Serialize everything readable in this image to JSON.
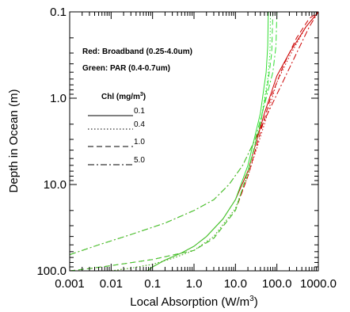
{
  "chart_data": {
    "type": "line",
    "xlabel": "Local Absorption (W/m",
    "xlabel_sup": "3",
    "xlabel_close": ")",
    "ylabel": "Depth in Ocean (m)",
    "x_scale": "log",
    "y_scale": "log",
    "y_inverted": true,
    "xlim": [
      0.001,
      1000
    ],
    "ylim": [
      0.1,
      100
    ],
    "x_ticks": [
      {
        "value": 0.001,
        "label": "0.001"
      },
      {
        "value": 0.01,
        "label": "0.01"
      },
      {
        "value": 0.1,
        "label": "0.1"
      },
      {
        "value": 1,
        "label": "1.0"
      },
      {
        "value": 10,
        "label": "10.0"
      },
      {
        "value": 100,
        "label": "100.0"
      },
      {
        "value": 1000,
        "label": "1000.0"
      }
    ],
    "y_ticks": [
      {
        "value": 0.1,
        "label": "0.1"
      },
      {
        "value": 1,
        "label": "1.0"
      },
      {
        "value": 10,
        "label": "10.0"
      },
      {
        "value": 100,
        "label": "100.0"
      }
    ],
    "annotations": [
      "Red: Broadband (0.25-4.0um)",
      "Green: PAR (0.4-0.7um)"
    ],
    "legend_title": "Chl (mg/m",
    "legend_title_sup": "3",
    "legend_title_close": ")",
    "legend": [
      {
        "label": "0.1",
        "dash": "solid"
      },
      {
        "label": "0.4",
        "dash": "dotted"
      },
      {
        "label": "1.0",
        "dash": "dashed"
      },
      {
        "label": "5.0",
        "dash": "dashdot"
      }
    ],
    "colors": {
      "broadband": "#cc0000",
      "par": "#33dd33"
    },
    "series": [
      {
        "group": "broadband",
        "chl": "0.1",
        "dash": "solid",
        "points": [
          [
            0.075,
            100
          ],
          [
            0.1,
            90
          ],
          [
            0.2,
            75
          ],
          [
            0.5,
            62
          ],
          [
            1,
            52
          ],
          [
            2,
            40
          ],
          [
            5,
            25
          ],
          [
            10,
            15
          ],
          [
            20,
            7
          ],
          [
            50,
            1.5
          ],
          [
            100,
            0.55
          ],
          [
            200,
            0.3
          ],
          [
            500,
            0.15
          ],
          [
            1000,
            0.1
          ]
        ]
      },
      {
        "group": "par",
        "chl": "0.1",
        "dash": "solid",
        "points": [
          [
            0.075,
            100
          ],
          [
            0.1,
            90
          ],
          [
            0.2,
            75
          ],
          [
            0.5,
            62
          ],
          [
            1,
            52
          ],
          [
            2,
            40
          ],
          [
            5,
            25
          ],
          [
            10,
            15
          ],
          [
            20,
            6
          ],
          [
            40,
            1.5
          ],
          [
            55,
            0.5
          ],
          [
            60,
            0.25
          ],
          [
            62,
            0.1
          ]
        ]
      },
      {
        "group": "broadband",
        "chl": "0.4",
        "dash": "dotted",
        "points": [
          [
            0.01,
            100
          ],
          [
            0.03,
            93
          ],
          [
            0.1,
            84
          ],
          [
            0.3,
            72
          ],
          [
            1,
            58
          ],
          [
            3,
            40
          ],
          [
            10,
            19
          ],
          [
            20,
            8
          ],
          [
            50,
            2
          ],
          [
            100,
            0.65
          ],
          [
            200,
            0.33
          ],
          [
            500,
            0.15
          ],
          [
            1000,
            0.1
          ]
        ]
      },
      {
        "group": "par",
        "chl": "0.4",
        "dash": "dotted",
        "points": [
          [
            0.01,
            100
          ],
          [
            0.03,
            93
          ],
          [
            0.1,
            84
          ],
          [
            0.3,
            72
          ],
          [
            1,
            58
          ],
          [
            3,
            40
          ],
          [
            10,
            19
          ],
          [
            20,
            7.5
          ],
          [
            40,
            2
          ],
          [
            60,
            0.6
          ],
          [
            68,
            0.3
          ],
          [
            70,
            0.1
          ]
        ]
      },
      {
        "group": "broadband",
        "chl": "1.0",
        "dash": "dashed",
        "points": [
          [
            0.001,
            100
          ],
          [
            0.003,
            94
          ],
          [
            0.01,
            87
          ],
          [
            0.1,
            74
          ],
          [
            1,
            58
          ],
          [
            3,
            42
          ],
          [
            10,
            20
          ],
          [
            20,
            8
          ],
          [
            40,
            2.5
          ],
          [
            70,
            1
          ],
          [
            150,
            0.4
          ],
          [
            300,
            0.2
          ],
          [
            600,
            0.12
          ],
          [
            1000,
            0.1
          ]
        ]
      },
      {
        "group": "par",
        "chl": "1.0",
        "dash": "dashed",
        "points": [
          [
            0.001,
            100
          ],
          [
            0.003,
            94
          ],
          [
            0.01,
            87
          ],
          [
            0.1,
            74
          ],
          [
            1,
            58
          ],
          [
            3,
            42
          ],
          [
            10,
            20
          ],
          [
            20,
            7
          ],
          [
            40,
            2
          ],
          [
            60,
            0.7
          ],
          [
            75,
            0.3
          ],
          [
            80,
            0.1
          ]
        ]
      },
      {
        "group": "broadband",
        "chl": "5.0",
        "dash": "dashdot",
        "points": [
          [
            0.001,
            65
          ],
          [
            0.005,
            50
          ],
          [
            0.03,
            38
          ],
          [
            0.2,
            28
          ],
          [
            1,
            20
          ],
          [
            3,
            15
          ],
          [
            7,
            10
          ],
          [
            15,
            6
          ],
          [
            30,
            3
          ],
          [
            60,
            1.5
          ],
          [
            150,
            0.6
          ],
          [
            300,
            0.3
          ],
          [
            600,
            0.15
          ],
          [
            1000,
            0.1
          ]
        ]
      },
      {
        "group": "par",
        "chl": "5.0",
        "dash": "dashdot",
        "points": [
          [
            0.001,
            65
          ],
          [
            0.005,
            50
          ],
          [
            0.03,
            38
          ],
          [
            0.2,
            28
          ],
          [
            1,
            20
          ],
          [
            3,
            15
          ],
          [
            7,
            10
          ],
          [
            15,
            6
          ],
          [
            30,
            3
          ],
          [
            50,
            1.2
          ],
          [
            80,
            0.5
          ],
          [
            95,
            0.25
          ],
          [
            100,
            0.1
          ]
        ]
      }
    ]
  }
}
